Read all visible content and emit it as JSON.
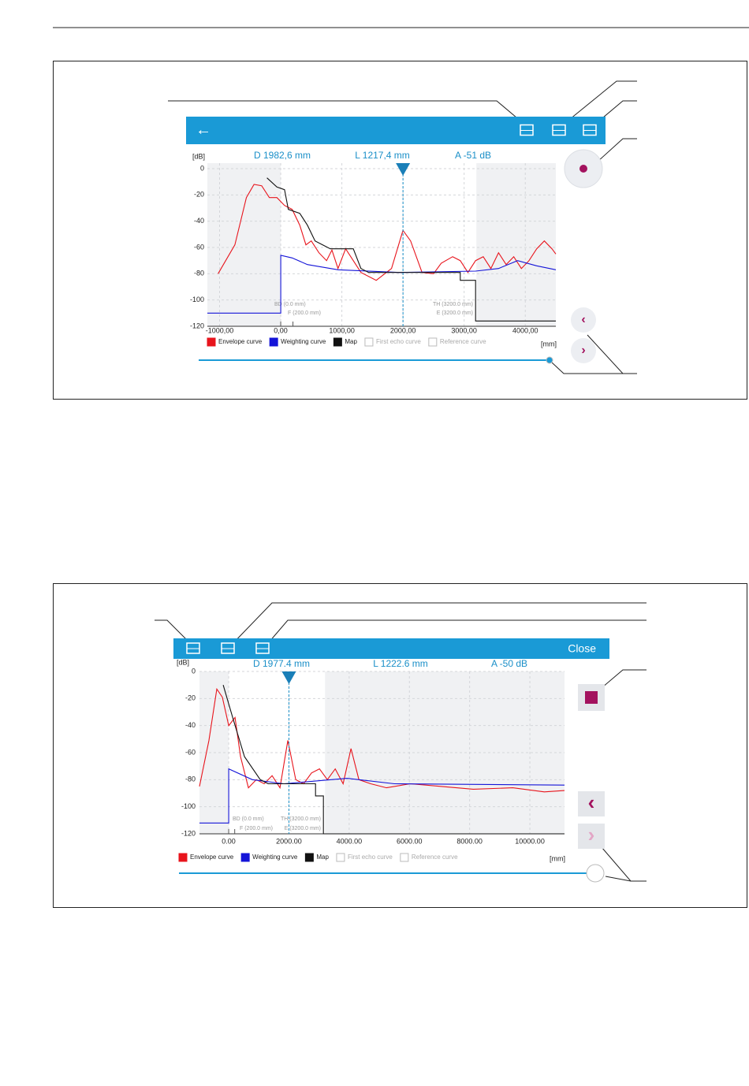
{
  "chart_data": [
    {
      "type": "line",
      "readouts": [
        "D 1982,6 mm",
        "L 1217,4 mm",
        "A -51 dB"
      ],
      "y_unit": "[dB]",
      "x_unit": "[mm]",
      "xlim": [
        -1200,
        4500
      ],
      "ylim": [
        -120,
        0
      ],
      "xticks": [
        {
          "value": -1000,
          "label": "-1000,00"
        },
        {
          "value": 0,
          "label": "0,00"
        },
        {
          "value": 1000,
          "label": "1000,00"
        },
        {
          "value": 2000,
          "label": "2000,00"
        },
        {
          "value": 3000,
          "label": "3000,00"
        },
        {
          "value": 4000,
          "label": "4000,00"
        }
      ],
      "yticks": [
        0,
        -20,
        -40,
        -60,
        -80,
        -100,
        -120
      ],
      "grid": true,
      "cursor": 2000,
      "shaded": [
        [
          -1200,
          0
        ],
        [
          3200,
          4500
        ]
      ],
      "marker_labels": [
        "BD (0.0 mm)",
        "F (200.0 mm)",
        "TH (3200.0 mm)",
        "E (3200.0 mm)"
      ],
      "legend_inactive": [
        "First echo curve",
        "Reference curve"
      ],
      "series": [
        {
          "name": "Envelope curve",
          "color": "#e8141c",
          "x": [
            -1025,
            -750,
            -562,
            -437,
            -312,
            -187,
            -62,
            62,
            187,
            312,
            412,
            500,
            625,
            750,
            837,
            937,
            1062,
            1187,
            1312,
            1562,
            1812,
            2000,
            2125,
            2312,
            2500,
            2625,
            2812,
            2937,
            3062,
            3187,
            3312,
            3437,
            3562,
            3687,
            3812,
            3937,
            4062,
            4187,
            4312,
            4437,
            4500
          ],
          "values": [
            -80,
            -58,
            -22,
            -12,
            -13,
            -22,
            -22,
            -28,
            -31,
            -43,
            -58,
            -55,
            -64,
            -70,
            -62,
            -76,
            -61,
            -70,
            -79,
            -85,
            -76,
            -47,
            -55,
            -79,
            -80,
            -72,
            -67,
            -70,
            -79,
            -70,
            -67,
            -76,
            -64,
            -73,
            -67,
            -76,
            -70,
            -61,
            -55,
            -61,
            -65
          ]
        },
        {
          "name": "Weighting curve",
          "color": "#1414d8",
          "x": [
            -1200,
            0,
            0,
            187,
            437,
            937,
            1937,
            3187,
            3562,
            3875,
            4187,
            4500
          ],
          "values": [
            -110,
            -110,
            -66,
            -68,
            -73,
            -77,
            -79,
            -78,
            -76,
            -70,
            -74,
            -77
          ]
        },
        {
          "name": "Map",
          "color": "#111111",
          "x": [
            -225,
            -62,
            62,
            125,
            312,
            437,
            562,
            687,
            812,
            1187,
            1312,
            1437,
            2937,
            2937,
            3187,
            3187,
            4500
          ],
          "values": [
            -7,
            -14,
            -16,
            -31,
            -34,
            -43,
            -55,
            -58,
            -61,
            -61,
            -76,
            -79,
            -79,
            -85,
            -85,
            -116,
            -116
          ]
        }
      ]
    },
    {
      "type": "line",
      "action": "Close",
      "readouts": [
        "D 1977.4 mm",
        "L 1222.6 mm",
        "A -50 dB"
      ],
      "y_unit": "[dB]",
      "x_unit": "[mm]",
      "xlim": [
        -970,
        11150
      ],
      "ylim": [
        -120,
        0
      ],
      "xticks": [
        {
          "value": 0,
          "label": "0.00"
        },
        {
          "value": 2000,
          "label": "2000.00"
        },
        {
          "value": 4000,
          "label": "4000.00"
        },
        {
          "value": 6000,
          "label": "6000.00"
        },
        {
          "value": 8000,
          "label": "8000.00"
        },
        {
          "value": 10000,
          "label": "10000.00"
        }
      ],
      "yticks": [
        0,
        -20,
        -40,
        -60,
        -80,
        -100,
        -120
      ],
      "grid": true,
      "cursor": 2000,
      "shaded": [
        [
          -970,
          0
        ],
        [
          3200,
          11150
        ]
      ],
      "marker_labels": [
        "BD (0.0 mm)",
        "F (200.0 mm)",
        "TH (3200.0 mm)",
        "E (3200.0 mm)"
      ],
      "legend_inactive": [
        "First echo curve",
        "Reference curve"
      ],
      "series": [
        {
          "name": "Envelope curve",
          "color": "#e8141c",
          "x": [
            -970,
            -655,
            -393,
            -210,
            0,
            210,
            393,
            655,
            917,
            1179,
            1441,
            1703,
            1965,
            2227,
            2489,
            2751,
            3013,
            3275,
            3537,
            3799,
            4061,
            4323,
            4716,
            5240,
            6026,
            7074,
            8122,
            9432,
            10480,
            11150
          ],
          "values": [
            -85,
            -51,
            -13,
            -19,
            -40,
            -34,
            -63,
            -86,
            -80,
            -83,
            -77,
            -86,
            -51,
            -80,
            -83,
            -75,
            -72,
            -80,
            -72,
            -83,
            -57,
            -80,
            -83,
            -86,
            -83,
            -85,
            -87,
            -86,
            -89,
            -88
          ]
        },
        {
          "name": "Weighting curve",
          "color": "#1414d8",
          "x": [
            -970,
            0,
            0,
            786,
            1834,
            3930,
            5502,
            11150
          ],
          "values": [
            -112,
            -112,
            -72,
            -80,
            -83,
            -79,
            -83,
            -84
          ]
        },
        {
          "name": "Map",
          "color": "#111111",
          "x": [
            -183,
            131,
            524,
            1048,
            1310,
            2882,
            2882,
            3144,
            3144,
            11150
          ],
          "values": [
            -10,
            -34,
            -63,
            -80,
            -83,
            -83,
            -92,
            -92,
            -120,
            -120
          ]
        }
      ]
    }
  ]
}
